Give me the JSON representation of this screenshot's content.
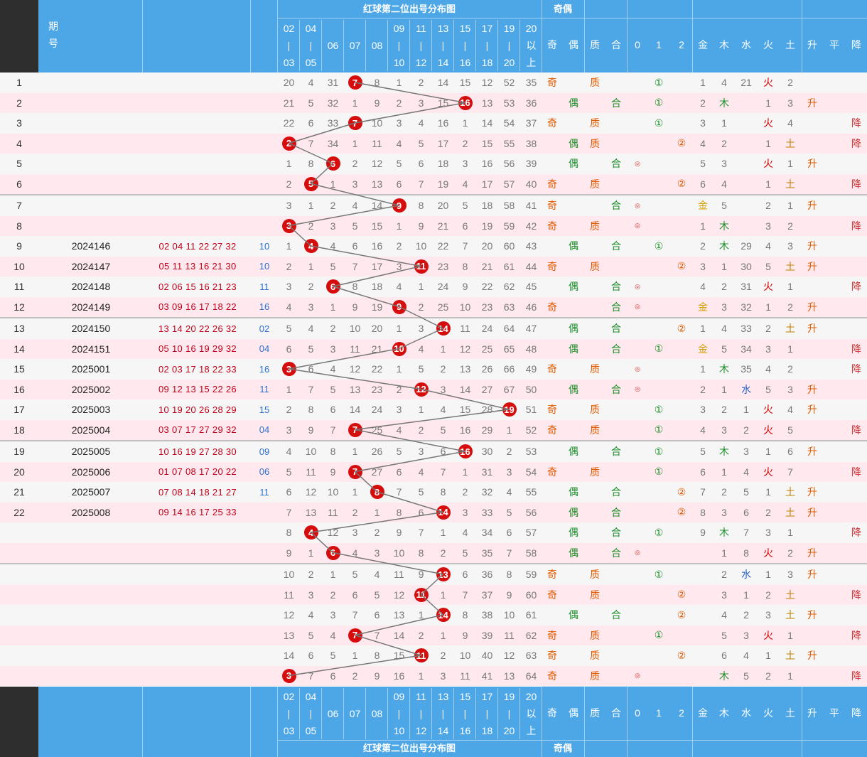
{
  "header": {
    "period_label_1": "期",
    "period_label_2": "号",
    "band_title": "红球第二位出号分布图",
    "parity_title": "奇偶",
    "zones": [
      [
        "02",
        "|",
        "03"
      ],
      [
        "04",
        "|",
        "05"
      ],
      [
        "06"
      ],
      [
        "07"
      ],
      [
        "08"
      ],
      [
        "09",
        "|",
        "10"
      ],
      [
        "11",
        "|",
        "12"
      ],
      [
        "13",
        "|",
        "14"
      ],
      [
        "15",
        "|",
        "16"
      ],
      [
        "17",
        "|",
        "18"
      ],
      [
        "19",
        "|",
        "20"
      ],
      [
        "20",
        "以",
        "上"
      ]
    ],
    "attr_labels": [
      "奇",
      "偶",
      "质",
      "合",
      "0",
      "1",
      "2",
      "金",
      "木",
      "水",
      "火",
      "土",
      "升",
      "平",
      "降"
    ]
  },
  "rows": [
    {
      "n": "1",
      "period": "",
      "code": "",
      "ball": "",
      "miss": [
        "20",
        "4",
        "31",
        "",
        "8",
        "1",
        "2",
        "14",
        "15",
        "12",
        "52",
        "35"
      ],
      "ball_col": 3,
      "ball_num": "7",
      "oe": "奇",
      "pc": "质",
      "mod": "1",
      "elem": [
        "1",
        "4",
        "21",
        "火",
        "2"
      ],
      "trend": ""
    },
    {
      "n": "2",
      "period": "",
      "code": "",
      "ball": "",
      "miss": [
        "21",
        "5",
        "32",
        "1",
        "9",
        "2",
        "3",
        "15",
        "",
        "13",
        "53",
        "36"
      ],
      "ball_col": 8,
      "ball_num": "16",
      "oe": "偶",
      "pc": "合",
      "mod": "1",
      "elem": [
        "2",
        "木",
        "",
        "1",
        "3"
      ],
      "trend": "升"
    },
    {
      "n": "3",
      "period": "",
      "code": "",
      "ball": "",
      "miss": [
        "22",
        "6",
        "33",
        "",
        "10",
        "3",
        "4",
        "16",
        "1",
        "14",
        "54",
        "37"
      ],
      "ball_col": 3,
      "ball_num": "7",
      "oe": "奇",
      "pc": "质",
      "mod": "1",
      "elem": [
        "3",
        "1",
        "",
        "火",
        "4"
      ],
      "trend": "降"
    },
    {
      "n": "4",
      "period": "",
      "code": "",
      "ball": "",
      "miss": [
        "",
        "7",
        "34",
        "1",
        "11",
        "4",
        "5",
        "17",
        "2",
        "15",
        "55",
        "38"
      ],
      "ball_col": 0,
      "ball_num": "2",
      "oe": "偶",
      "pc": "质",
      "mod": "2",
      "elem": [
        "4",
        "2",
        "",
        "1",
        "土"
      ],
      "trend": "降"
    },
    {
      "n": "5",
      "period": "",
      "code": "",
      "ball": "",
      "miss": [
        "1",
        "8",
        "",
        "2",
        "12",
        "5",
        "6",
        "18",
        "3",
        "16",
        "56",
        "39"
      ],
      "ball_col": 2,
      "ball_num": "6",
      "oe": "偶",
      "pc": "合",
      "mod": "0",
      "elem": [
        "5",
        "3",
        "",
        "火",
        "1"
      ],
      "trend": "升"
    },
    {
      "n": "6",
      "period": "",
      "code": "",
      "ball": "",
      "miss": [
        "2",
        "",
        "1",
        "3",
        "13",
        "6",
        "7",
        "19",
        "4",
        "17",
        "57",
        "40"
      ],
      "ball_col": 1,
      "ball_num": "5",
      "oe": "奇",
      "pc": "质",
      "mod": "2",
      "elem": [
        "6",
        "4",
        "",
        "1",
        "土"
      ],
      "trend": "降"
    },
    {
      "n": "7",
      "period": "",
      "code": "",
      "ball": "",
      "miss": [
        "3",
        "1",
        "2",
        "4",
        "14",
        "",
        "8",
        "20",
        "5",
        "18",
        "58",
        "41"
      ],
      "ball_col": 5,
      "ball_num": "9",
      "oe": "奇",
      "pc": "合",
      "mod": "0",
      "elem": [
        "金",
        "5",
        "",
        "2",
        "1"
      ],
      "trend": "升"
    },
    {
      "n": "8",
      "period": "",
      "code": "",
      "ball": "",
      "miss": [
        "",
        "2",
        "3",
        "5",
        "15",
        "1",
        "9",
        "21",
        "6",
        "19",
        "59",
        "42"
      ],
      "ball_col": 0,
      "ball_num": "3",
      "oe": "奇",
      "pc": "质",
      "mod": "0",
      "elem": [
        "1",
        "木",
        "",
        "3",
        "2"
      ],
      "trend": "降"
    },
    {
      "n": "9",
      "period": "2024146",
      "code": "02 04 11 22 27 32",
      "ball": "10",
      "miss": [
        "1",
        "",
        "4",
        "6",
        "16",
        "2",
        "10",
        "22",
        "7",
        "20",
        "60",
        "43"
      ],
      "ball_col": 1,
      "ball_num": "4",
      "oe": "偶",
      "pc": "合",
      "mod": "1",
      "elem": [
        "2",
        "木",
        "29",
        "4",
        "3"
      ],
      "trend": "升"
    },
    {
      "n": "10",
      "period": "2024147",
      "code": "05 11 13 16 21 30",
      "ball": "10",
      "miss": [
        "2",
        "1",
        "5",
        "7",
        "17",
        "3",
        "",
        "23",
        "8",
        "21",
        "61",
        "44"
      ],
      "ball_col": 6,
      "ball_num": "11",
      "oe": "奇",
      "pc": "质",
      "mod": "2",
      "elem": [
        "3",
        "1",
        "30",
        "5",
        "土"
      ],
      "trend": "升"
    },
    {
      "n": "11",
      "period": "2024148",
      "code": "02 06 15 16 21 23",
      "ball": "11",
      "miss": [
        "3",
        "2",
        "",
        "8",
        "18",
        "4",
        "1",
        "24",
        "9",
        "22",
        "62",
        "45"
      ],
      "ball_col": 2,
      "ball_num": "6",
      "oe": "偶",
      "pc": "合",
      "mod": "0",
      "elem": [
        "4",
        "2",
        "31",
        "火",
        "1"
      ],
      "trend": "降"
    },
    {
      "n": "12",
      "period": "2024149",
      "code": "03 09 16 17 18 22",
      "ball": "16",
      "miss": [
        "4",
        "3",
        "1",
        "9",
        "19",
        "",
        "2",
        "25",
        "10",
        "23",
        "63",
        "46"
      ],
      "ball_col": 5,
      "ball_num": "9",
      "oe": "奇",
      "pc": "合",
      "mod": "0",
      "elem": [
        "金",
        "3",
        "32",
        "1",
        "2"
      ],
      "trend": "升"
    },
    {
      "n": "13",
      "period": "2024150",
      "code": "13 14 20 22 26 32",
      "ball": "02",
      "miss": [
        "5",
        "4",
        "2",
        "10",
        "20",
        "1",
        "3",
        "",
        "11",
        "24",
        "64",
        "47"
      ],
      "ball_col": 7,
      "ball_num": "14",
      "oe": "偶",
      "pc": "合",
      "mod": "2",
      "elem": [
        "1",
        "4",
        "33",
        "2",
        "土"
      ],
      "trend": "升"
    },
    {
      "n": "14",
      "period": "2024151",
      "code": "05 10 16 19 29 32",
      "ball": "04",
      "miss": [
        "6",
        "5",
        "3",
        "11",
        "21",
        "",
        "4",
        "1",
        "12",
        "25",
        "65",
        "48"
      ],
      "ball_col": 5,
      "ball_num": "10",
      "oe": "偶",
      "pc": "合",
      "mod": "1",
      "elem": [
        "金",
        "5",
        "34",
        "3",
        "1"
      ],
      "trend": "降"
    },
    {
      "n": "15",
      "period": "2025001",
      "code": "02 03 17 18 22 33",
      "ball": "16",
      "miss": [
        "",
        "6",
        "4",
        "12",
        "22",
        "1",
        "5",
        "2",
        "13",
        "26",
        "66",
        "49"
      ],
      "ball_col": 0,
      "ball_num": "3",
      "oe": "奇",
      "pc": "质",
      "mod": "0",
      "elem": [
        "1",
        "木",
        "35",
        "4",
        "2"
      ],
      "trend": "降"
    },
    {
      "n": "16",
      "period": "2025002",
      "code": "09 12 13 15 22 26",
      "ball": "11",
      "miss": [
        "1",
        "7",
        "5",
        "13",
        "23",
        "2",
        "",
        "3",
        "14",
        "27",
        "67",
        "50"
      ],
      "ball_col": 6,
      "ball_num": "12",
      "oe": "偶",
      "pc": "合",
      "mod": "0",
      "elem": [
        "2",
        "1",
        "水",
        "5",
        "3"
      ],
      "trend": "升"
    },
    {
      "n": "17",
      "period": "2025003",
      "code": "10 19 20 26 28 29",
      "ball": "15",
      "miss": [
        "2",
        "8",
        "6",
        "14",
        "24",
        "3",
        "1",
        "4",
        "15",
        "28",
        "",
        "51"
      ],
      "ball_col": 10,
      "ball_num": "19",
      "oe": "奇",
      "pc": "质",
      "mod": "1",
      "elem": [
        "3",
        "2",
        "1",
        "火",
        "4"
      ],
      "trend": "升"
    },
    {
      "n": "18",
      "period": "2025004",
      "code": "03 07 17 27 29 32",
      "ball": "04",
      "miss": [
        "3",
        "9",
        "7",
        "",
        "25",
        "4",
        "2",
        "5",
        "16",
        "29",
        "1",
        "52"
      ],
      "ball_col": 3,
      "ball_num": "7",
      "oe": "奇",
      "pc": "质",
      "mod": "1",
      "elem": [
        "4",
        "3",
        "2",
        "火",
        "5"
      ],
      "trend": "降"
    },
    {
      "n": "19",
      "period": "2025005",
      "code": "10 16 19 27 28 30",
      "ball": "09",
      "miss": [
        "4",
        "10",
        "8",
        "1",
        "26",
        "5",
        "3",
        "6",
        "",
        "30",
        "2",
        "53"
      ],
      "ball_col": 8,
      "ball_num": "16",
      "oe": "偶",
      "pc": "合",
      "mod": "1",
      "elem": [
        "5",
        "木",
        "3",
        "1",
        "6"
      ],
      "trend": "升"
    },
    {
      "n": "20",
      "period": "2025006",
      "code": "01 07 08 17 20 22",
      "ball": "06",
      "miss": [
        "5",
        "11",
        "9",
        "",
        "27",
        "6",
        "4",
        "7",
        "1",
        "31",
        "3",
        "54"
      ],
      "ball_col": 3,
      "ball_num": "7",
      "oe": "奇",
      "pc": "质",
      "mod": "1",
      "elem": [
        "6",
        "1",
        "4",
        "火",
        "7"
      ],
      "trend": "降"
    },
    {
      "n": "21",
      "period": "2025007",
      "code": "07 08 14 18 21 27",
      "ball": "11",
      "miss": [
        "6",
        "12",
        "10",
        "1",
        "",
        "7",
        "5",
        "8",
        "2",
        "32",
        "4",
        "55"
      ],
      "ball_col": 4,
      "ball_num": "8",
      "oe": "偶",
      "pc": "合",
      "mod": "2",
      "elem": [
        "7",
        "2",
        "5",
        "1",
        "土"
      ],
      "trend": "升"
    },
    {
      "n": "22",
      "period": "2025008",
      "code": "09 14 16 17 25 33",
      "ball": "",
      "miss": [
        "7",
        "13",
        "11",
        "2",
        "1",
        "8",
        "6",
        "",
        "3",
        "33",
        "5",
        "56"
      ],
      "ball_col": 7,
      "ball_num": "14",
      "oe": "偶",
      "pc": "合",
      "mod": "2",
      "elem": [
        "8",
        "3",
        "6",
        "2",
        "土"
      ],
      "trend": "升"
    },
    {
      "n": "",
      "period": "",
      "code": "",
      "ball": "",
      "miss": [
        "8",
        "",
        "12",
        "3",
        "2",
        "9",
        "7",
        "1",
        "4",
        "34",
        "6",
        "57"
      ],
      "ball_col": 1,
      "ball_num": "4",
      "oe": "偶",
      "pc": "合",
      "mod": "1",
      "elem": [
        "9",
        "木",
        "7",
        "3",
        "1"
      ],
      "trend": "降"
    },
    {
      "n": "",
      "period": "",
      "code": "",
      "ball": "",
      "miss": [
        "9",
        "1",
        "",
        "4",
        "3",
        "10",
        "8",
        "2",
        "5",
        "35",
        "7",
        "58"
      ],
      "ball_col": 2,
      "ball_num": "6",
      "oe": "偶",
      "pc": "合",
      "mod": "0",
      "elem": [
        "",
        "1",
        "8",
        "火",
        "2"
      ],
      "trend": "升"
    },
    {
      "n": "",
      "period": "",
      "code": "",
      "ball": "",
      "miss": [
        "10",
        "2",
        "1",
        "5",
        "4",
        "11",
        "9",
        "",
        "6",
        "36",
        "8",
        "59"
      ],
      "ball_col": 7,
      "ball_num": "13",
      "oe": "奇",
      "pc": "质",
      "mod": "1",
      "elem": [
        "",
        "2",
        "水",
        "1",
        "3"
      ],
      "trend": "升"
    },
    {
      "n": "",
      "period": "",
      "code": "",
      "ball": "",
      "miss": [
        "11",
        "3",
        "2",
        "6",
        "5",
        "12",
        "",
        "1",
        "7",
        "37",
        "9",
        "60"
      ],
      "ball_col": 6,
      "ball_num": "11",
      "oe": "奇",
      "pc": "质",
      "mod": "2",
      "elem": [
        "",
        "3",
        "1",
        "2",
        "土"
      ],
      "trend": "降"
    },
    {
      "n": "",
      "period": "",
      "code": "",
      "ball": "",
      "miss": [
        "12",
        "4",
        "3",
        "7",
        "6",
        "13",
        "1",
        "",
        "8",
        "38",
        "10",
        "61"
      ],
      "ball_col": 7,
      "ball_num": "14",
      "oe": "偶",
      "pc": "合",
      "mod": "2",
      "elem": [
        "",
        "4",
        "2",
        "3",
        "土"
      ],
      "trend": "升"
    },
    {
      "n": "",
      "period": "",
      "code": "",
      "ball": "",
      "miss": [
        "13",
        "5",
        "4",
        "",
        "7",
        "14",
        "2",
        "1",
        "9",
        "39",
        "11",
        "62"
      ],
      "ball_col": 3,
      "ball_num": "7",
      "oe": "奇",
      "pc": "质",
      "mod": "1",
      "elem": [
        "",
        "5",
        "3",
        "火",
        "1"
      ],
      "trend": "降"
    },
    {
      "n": "",
      "period": "",
      "code": "",
      "ball": "",
      "miss": [
        "14",
        "6",
        "5",
        "1",
        "8",
        "15",
        "",
        "2",
        "10",
        "40",
        "12",
        "63"
      ],
      "ball_col": 6,
      "ball_num": "11",
      "oe": "奇",
      "pc": "质",
      "mod": "2",
      "elem": [
        "",
        "6",
        "4",
        "1",
        "土"
      ],
      "trend": "升"
    },
    {
      "n": "",
      "period": "",
      "code": "",
      "ball": "",
      "miss": [
        "",
        "7",
        "6",
        "2",
        "9",
        "16",
        "1",
        "3",
        "11",
        "41",
        "13",
        "64"
      ],
      "ball_col": 0,
      "ball_num": "3",
      "oe": "奇",
      "pc": "质",
      "mod": "0",
      "elem": [
        "",
        "木",
        "5",
        "2",
        "1"
      ],
      "trend": "降"
    }
  ],
  "mod_symbols": {
    "0": "◎",
    "1": "①",
    "2": "②"
  },
  "colors": {
    "header_blue": "#4da6e6",
    "ball_red": "#d50d0d",
    "row_pink": "#ffe9ee",
    "row_grey": "#f6f6f6"
  }
}
